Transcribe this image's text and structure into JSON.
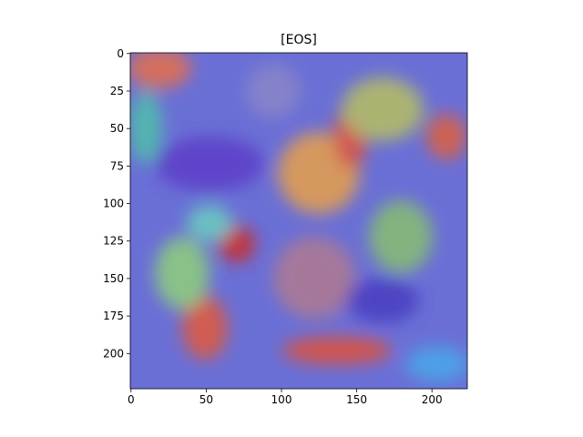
{
  "chart_data": {
    "type": "image",
    "title": "[EOS]",
    "xlim": [
      -0.5,
      223.5
    ],
    "ylim": [
      223.5,
      -0.5
    ],
    "xticks": [
      0,
      50,
      100,
      150,
      200
    ],
    "yticks": [
      0,
      25,
      50,
      75,
      100,
      125,
      150,
      175,
      200
    ]
  }
}
